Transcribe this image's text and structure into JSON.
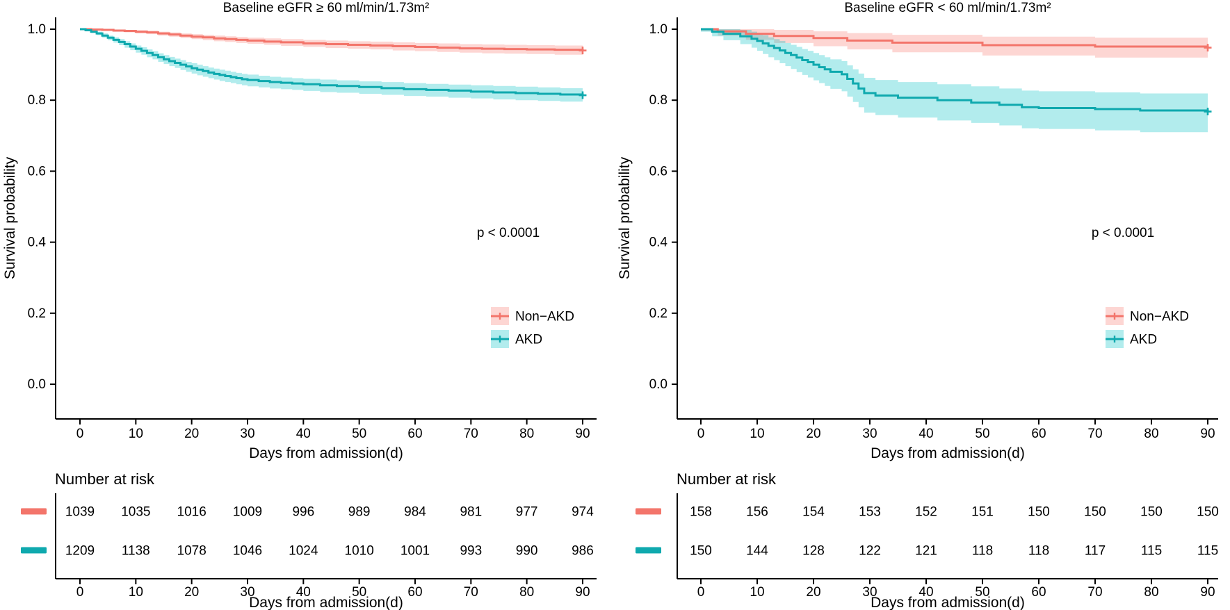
{
  "figure": {
    "background": "#ffffff",
    "text_color": "#000000",
    "axis_color": "#000000"
  },
  "chart_data": [
    {
      "type": "line",
      "subtype": "kaplan-meier-step",
      "title": "Baseline eGFR ≥ 60 ml/min/1.73m²",
      "xlabel": "Days from admission(d)",
      "ylabel": "Survival probability",
      "p_value_label": "p < 0.0001",
      "grid": false,
      "legend_position": "inside-lower-right",
      "xlim": [
        -4,
        94
      ],
      "ylim": [
        -0.1,
        1.05
      ],
      "x_ticks": [
        0,
        10,
        20,
        30,
        40,
        50,
        60,
        70,
        80,
        90
      ],
      "x_tick_labels": [
        "0",
        "10",
        "20",
        "30",
        "40",
        "50",
        "60",
        "70",
        "80",
        "90"
      ],
      "y_ticks": [
        1.0,
        0.8,
        0.6,
        0.4,
        0.2,
        0.0
      ],
      "y_tick_labels": [
        "1.0",
        "0.8",
        "0.6",
        "0.4",
        "0.2",
        "0.0"
      ],
      "series": [
        {
          "name": "Non−AKD",
          "line_color": "#F3756B",
          "band_color": "#F8766D",
          "points": [
            [
              0,
              1.0,
              0.998,
              1.0
            ],
            [
              2,
              0.999,
              0.997,
              1.0
            ],
            [
              4,
              0.998,
              0.995,
              1.0
            ],
            [
              6,
              0.996,
              0.993,
              0.999
            ],
            [
              8,
              0.995,
              0.991,
              0.998
            ],
            [
              10,
              0.993,
              0.988,
              0.997
            ],
            [
              12,
              0.991,
              0.986,
              0.996
            ],
            [
              14,
              0.988,
              0.982,
              0.993
            ],
            [
              16,
              0.985,
              0.979,
              0.991
            ],
            [
              18,
              0.982,
              0.975,
              0.988
            ],
            [
              20,
              0.979,
              0.972,
              0.986
            ],
            [
              22,
              0.977,
              0.969,
              0.984
            ],
            [
              24,
              0.974,
              0.966,
              0.982
            ],
            [
              26,
              0.972,
              0.964,
              0.98
            ],
            [
              28,
              0.97,
              0.961,
              0.978
            ],
            [
              30,
              0.968,
              0.959,
              0.976
            ],
            [
              33,
              0.965,
              0.956,
              0.974
            ],
            [
              36,
              0.963,
              0.953,
              0.972
            ],
            [
              40,
              0.96,
              0.95,
              0.97
            ],
            [
              44,
              0.958,
              0.947,
              0.968
            ],
            [
              48,
              0.956,
              0.945,
              0.966
            ],
            [
              52,
              0.954,
              0.943,
              0.965
            ],
            [
              56,
              0.952,
              0.94,
              0.963
            ],
            [
              60,
              0.95,
              0.938,
              0.961
            ],
            [
              64,
              0.948,
              0.936,
              0.96
            ],
            [
              68,
              0.946,
              0.934,
              0.958
            ],
            [
              72,
              0.945,
              0.932,
              0.957
            ],
            [
              76,
              0.944,
              0.931,
              0.956
            ],
            [
              80,
              0.943,
              0.93,
              0.955
            ],
            [
              85,
              0.942,
              0.928,
              0.954
            ],
            [
              90,
              0.94,
              0.926,
              0.953
            ]
          ]
        },
        {
          "name": "AKD",
          "line_color": "#0FA9AE",
          "band_color": "#00BFC4",
          "points": [
            [
              0,
              1.0,
              0.998,
              1.0
            ],
            [
              1,
              0.997,
              0.994,
              1.0
            ],
            [
              2,
              0.993,
              0.989,
              0.997
            ],
            [
              3,
              0.988,
              0.983,
              0.993
            ],
            [
              4,
              0.982,
              0.976,
              0.988
            ],
            [
              5,
              0.976,
              0.969,
              0.982
            ],
            [
              6,
              0.97,
              0.962,
              0.977
            ],
            [
              7,
              0.964,
              0.955,
              0.972
            ],
            [
              8,
              0.958,
              0.948,
              0.966
            ],
            [
              9,
              0.951,
              0.941,
              0.96
            ],
            [
              10,
              0.945,
              0.934,
              0.954
            ],
            [
              11,
              0.939,
              0.928,
              0.949
            ],
            [
              12,
              0.933,
              0.921,
              0.943
            ],
            [
              13,
              0.927,
              0.915,
              0.938
            ],
            [
              14,
              0.921,
              0.908,
              0.932
            ],
            [
              15,
              0.915,
              0.902,
              0.927
            ],
            [
              16,
              0.91,
              0.896,
              0.922
            ],
            [
              17,
              0.905,
              0.891,
              0.917
            ],
            [
              18,
              0.9,
              0.885,
              0.913
            ],
            [
              19,
              0.895,
              0.88,
              0.908
            ],
            [
              20,
              0.89,
              0.875,
              0.904
            ],
            [
              21,
              0.886,
              0.87,
              0.9
            ],
            [
              22,
              0.882,
              0.866,
              0.896
            ],
            [
              23,
              0.878,
              0.862,
              0.892
            ],
            [
              24,
              0.874,
              0.858,
              0.889
            ],
            [
              25,
              0.871,
              0.854,
              0.886
            ],
            [
              26,
              0.868,
              0.851,
              0.883
            ],
            [
              27,
              0.865,
              0.848,
              0.88
            ],
            [
              28,
              0.862,
              0.845,
              0.877
            ],
            [
              29,
              0.859,
              0.842,
              0.874
            ],
            [
              30,
              0.857,
              0.839,
              0.872
            ],
            [
              32,
              0.854,
              0.836,
              0.869
            ],
            [
              34,
              0.851,
              0.833,
              0.866
            ],
            [
              36,
              0.849,
              0.831,
              0.864
            ],
            [
              38,
              0.847,
              0.829,
              0.862
            ],
            [
              40,
              0.845,
              0.826,
              0.86
            ],
            [
              43,
              0.842,
              0.823,
              0.858
            ],
            [
              46,
              0.84,
              0.821,
              0.856
            ],
            [
              50,
              0.837,
              0.818,
              0.853
            ],
            [
              54,
              0.834,
              0.815,
              0.851
            ],
            [
              58,
              0.831,
              0.812,
              0.848
            ],
            [
              62,
              0.829,
              0.81,
              0.846
            ],
            [
              66,
              0.827,
              0.807,
              0.844
            ],
            [
              70,
              0.824,
              0.805,
              0.842
            ],
            [
              74,
              0.822,
              0.802,
              0.84
            ],
            [
              78,
              0.82,
              0.8,
              0.838
            ],
            [
              82,
              0.818,
              0.798,
              0.836
            ],
            [
              86,
              0.816,
              0.796,
              0.834
            ],
            [
              90,
              0.814,
              0.793,
              0.833
            ]
          ]
        }
      ],
      "number_at_risk": {
        "header": "Number at risk",
        "times": [
          0,
          10,
          20,
          30,
          40,
          50,
          60,
          70,
          80,
          90
        ],
        "rows": [
          {
            "name": "Non−AKD",
            "color": "#F3756B",
            "counts": [
              1039,
              1035,
              1016,
              1009,
              996,
              989,
              984,
              981,
              977,
              974
            ]
          },
          {
            "name": "AKD",
            "color": "#0FA9AE",
            "counts": [
              1209,
              1138,
              1078,
              1046,
              1024,
              1010,
              1001,
              993,
              990,
              986
            ]
          }
        ]
      }
    },
    {
      "type": "line",
      "subtype": "kaplan-meier-step",
      "title": "Baseline eGFR < 60 ml/min/1.73m²",
      "xlabel": "Days from admission(d)",
      "ylabel": "Survival probability",
      "p_value_label": "p < 0.0001",
      "grid": false,
      "legend_position": "inside-lower-right",
      "xlim": [
        -4,
        94
      ],
      "ylim": [
        -0.1,
        1.05
      ],
      "x_ticks": [
        0,
        10,
        20,
        30,
        40,
        50,
        60,
        70,
        80,
        90
      ],
      "x_tick_labels": [
        "0",
        "10",
        "20",
        "30",
        "40",
        "50",
        "60",
        "70",
        "80",
        "90"
      ],
      "y_ticks": [
        1.0,
        0.8,
        0.6,
        0.4,
        0.2,
        0.0
      ],
      "y_tick_labels": [
        "1.0",
        "0.8",
        "0.6",
        "0.4",
        "0.2",
        "0.0"
      ],
      "series": [
        {
          "name": "Non−AKD",
          "line_color": "#F3756B",
          "band_color": "#F8766D",
          "points": [
            [
              0,
              1.0,
              0.995,
              1.0
            ],
            [
              3,
              0.994,
              0.982,
              1.0
            ],
            [
              8,
              0.987,
              0.97,
              1.0
            ],
            [
              13,
              0.981,
              0.961,
              0.998
            ],
            [
              20,
              0.975,
              0.952,
              0.994
            ],
            [
              26,
              0.968,
              0.943,
              0.989
            ],
            [
              34,
              0.962,
              0.935,
              0.984
            ],
            [
              50,
              0.955,
              0.926,
              0.979
            ],
            [
              70,
              0.951,
              0.92,
              0.976
            ],
            [
              90,
              0.948,
              0.915,
              0.974
            ]
          ]
        },
        {
          "name": "AKD",
          "line_color": "#0FA9AE",
          "band_color": "#00BFC4",
          "points": [
            [
              0,
              1.0,
              0.993,
              1.0
            ],
            [
              2,
              0.993,
              0.98,
              1.0
            ],
            [
              4,
              0.987,
              0.969,
              1.0
            ],
            [
              7,
              0.98,
              0.958,
              0.998
            ],
            [
              9,
              0.973,
              0.948,
              0.993
            ],
            [
              10,
              0.967,
              0.939,
              0.988
            ],
            [
              11,
              0.96,
              0.93,
              0.983
            ],
            [
              12,
              0.953,
              0.921,
              0.977
            ],
            [
              13,
              0.947,
              0.913,
              0.972
            ],
            [
              14,
              0.94,
              0.904,
              0.967
            ],
            [
              15,
              0.933,
              0.896,
              0.961
            ],
            [
              16,
              0.927,
              0.888,
              0.956
            ],
            [
              17,
              0.92,
              0.879,
              0.95
            ],
            [
              18,
              0.913,
              0.871,
              0.944
            ],
            [
              19,
              0.907,
              0.864,
              0.939
            ],
            [
              20,
              0.9,
              0.856,
              0.933
            ],
            [
              21,
              0.893,
              0.848,
              0.927
            ],
            [
              22,
              0.887,
              0.84,
              0.921
            ],
            [
              23,
              0.88,
              0.832,
              0.915
            ],
            [
              25,
              0.873,
              0.825,
              0.91
            ],
            [
              26,
              0.86,
              0.81,
              0.898
            ],
            [
              27,
              0.847,
              0.795,
              0.887
            ],
            [
              28,
              0.833,
              0.78,
              0.875
            ],
            [
              29,
              0.82,
              0.765,
              0.863
            ],
            [
              31,
              0.813,
              0.758,
              0.857
            ],
            [
              35,
              0.807,
              0.751,
              0.851
            ],
            [
              42,
              0.8,
              0.743,
              0.845
            ],
            [
              48,
              0.793,
              0.736,
              0.839
            ],
            [
              53,
              0.787,
              0.729,
              0.833
            ],
            [
              57,
              0.78,
              0.721,
              0.827
            ],
            [
              60,
              0.778,
              0.719,
              0.825
            ],
            [
              70,
              0.775,
              0.715,
              0.822
            ],
            [
              78,
              0.771,
              0.71,
              0.819
            ],
            [
              90,
              0.768,
              0.706,
              0.817
            ]
          ]
        }
      ],
      "number_at_risk": {
        "header": "Number at risk",
        "times": [
          0,
          10,
          20,
          30,
          40,
          50,
          60,
          70,
          80,
          90
        ],
        "rows": [
          {
            "name": "Non−AKD",
            "color": "#F3756B",
            "counts": [
              158,
              156,
              154,
              153,
              152,
              151,
              150,
              150,
              150,
              150
            ]
          },
          {
            "name": "AKD",
            "color": "#0FA9AE",
            "counts": [
              150,
              144,
              128,
              122,
              121,
              118,
              118,
              117,
              115,
              115
            ]
          }
        ]
      }
    }
  ]
}
